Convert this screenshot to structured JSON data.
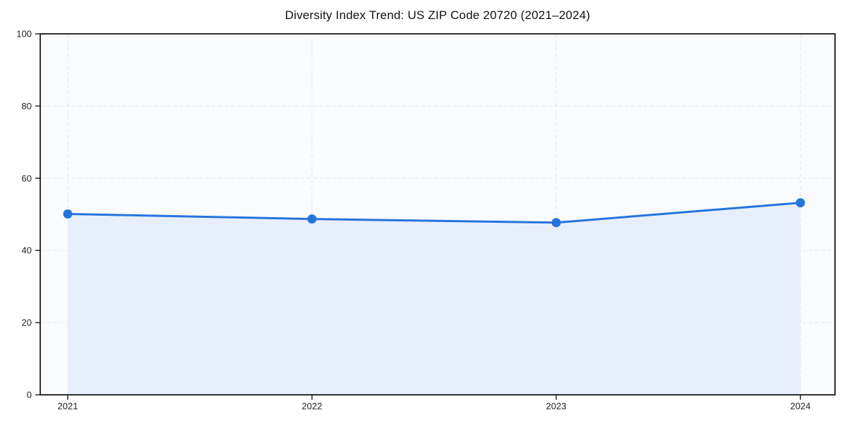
{
  "title": "Diversity Index Trend: US ZIP Code 20720 (2021–2024)",
  "colors": {
    "line": "#2574dd",
    "marker": "#2574dd",
    "area": "#e8effc",
    "grid": "#e3e5e8",
    "spine": "#1a1a1a",
    "plot_bg": "#fafbfc",
    "tick_label": "#222222",
    "title_text": "#111111"
  },
  "chart_data": {
    "type": "area",
    "title": "Diversity Index Trend: US ZIP Code 20720 (2021–2024)",
    "categories": [
      "2021",
      "2022",
      "2023",
      "2024"
    ],
    "values": [
      50.1,
      48.7,
      47.7,
      53.2
    ],
    "series_name": "Diversity Index",
    "xlabel": "",
    "ylabel": "",
    "ylim": [
      0,
      100
    ],
    "yticks": [
      0,
      20,
      40,
      60,
      80,
      100
    ],
    "grid": {
      "horizontal": true,
      "vertical": true,
      "style": "dashed"
    },
    "legend": "none",
    "markers": true,
    "fill_to_zero": true
  }
}
